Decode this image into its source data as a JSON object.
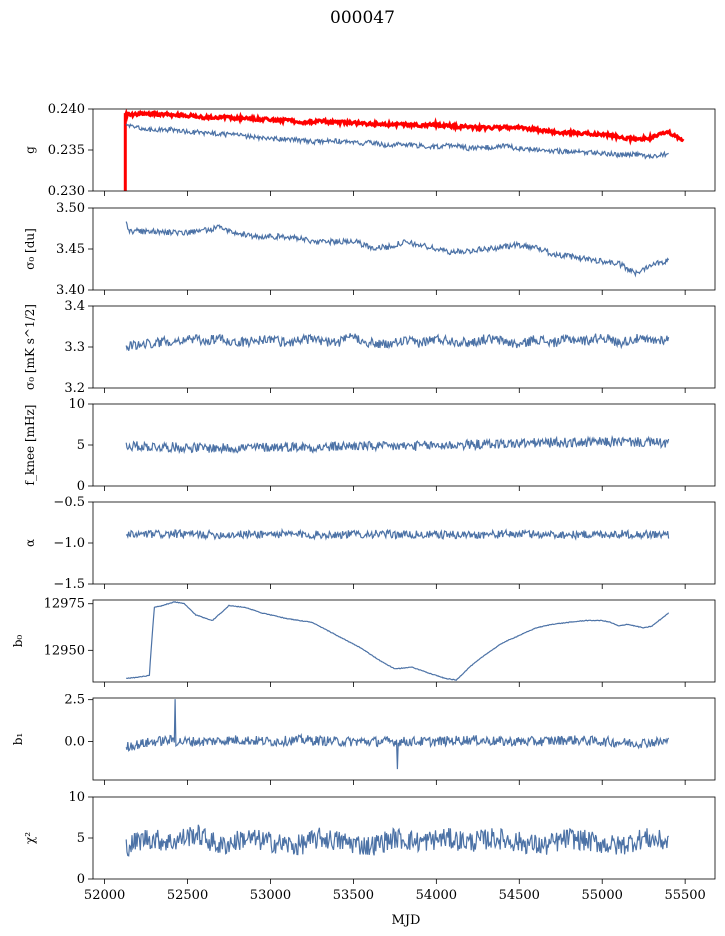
{
  "figure": {
    "title": "000047"
  },
  "chart_data": [
    {
      "type": "line",
      "ylabel": "g",
      "ylim": [
        0.23,
        0.24
      ],
      "yticks": [
        "0.230",
        "0.235",
        "0.240"
      ],
      "yticks_values": [
        0.23,
        0.235,
        0.24
      ],
      "series": [
        {
          "color": "#ff0000",
          "line_width": 3,
          "x": [
            52120,
            52150,
            52200,
            52300,
            52400,
            52500,
            52600,
            52700,
            52800,
            52900,
            53000,
            53100,
            53200,
            53300,
            53400,
            53500,
            53600,
            53700,
            53800,
            53900,
            54000,
            54100,
            54200,
            54300,
            54400,
            54500,
            54600,
            54700,
            54800,
            54900,
            55000,
            55050,
            55100,
            55150,
            55200,
            55250,
            55300,
            55350,
            55400,
            55450,
            55490
          ],
          "y": [
            0.2393,
            0.2393,
            0.2394,
            0.2394,
            0.2393,
            0.2392,
            0.239,
            0.239,
            0.2389,
            0.2388,
            0.2387,
            0.2386,
            0.2384,
            0.2385,
            0.2384,
            0.2383,
            0.2382,
            0.2381,
            0.2381,
            0.238,
            0.2381,
            0.2379,
            0.2378,
            0.2377,
            0.2378,
            0.2377,
            0.2375,
            0.2372,
            0.2371,
            0.237,
            0.2369,
            0.2368,
            0.2366,
            0.2364,
            0.2363,
            0.2364,
            0.2365,
            0.2369,
            0.2372,
            0.2366,
            0.236
          ]
        },
        {
          "color": "#4c72a6",
          "line_width": 1.2,
          "x": [
            52130,
            52200,
            52300,
            52400,
            52500,
            52600,
            52700,
            52800,
            52900,
            53000,
            53100,
            53200,
            53300,
            53400,
            53500,
            53600,
            53700,
            53800,
            53900,
            54000,
            54100,
            54200,
            54300,
            54400,
            54500,
            54600,
            54700,
            54800,
            54900,
            55000,
            55100,
            55200,
            55300,
            55400
          ],
          "y": [
            0.2382,
            0.2377,
            0.2374,
            0.2375,
            0.2372,
            0.2371,
            0.2369,
            0.2368,
            0.2366,
            0.2363,
            0.2364,
            0.2361,
            0.236,
            0.2361,
            0.2358,
            0.2359,
            0.2356,
            0.2357,
            0.2355,
            0.2354,
            0.2356,
            0.2352,
            0.2353,
            0.2355,
            0.2352,
            0.2351,
            0.2349,
            0.2348,
            0.2347,
            0.2346,
            0.2344,
            0.2345,
            0.2341,
            0.2346
          ]
        }
      ]
    },
    {
      "type": "line",
      "ylabel": "σ₀ [du]",
      "ylim": [
        3.4,
        3.5
      ],
      "yticks": [
        "3.40",
        "3.45",
        "3.50"
      ],
      "yticks_values": [
        3.4,
        3.45,
        3.5
      ],
      "series": [
        {
          "color": "#4c72a6",
          "line_width": 1.2,
          "x": [
            52130,
            52150,
            52300,
            52500,
            52700,
            52800,
            52900,
            53100,
            53300,
            53500,
            53600,
            53700,
            53800,
            53900,
            54000,
            54100,
            54300,
            54500,
            54600,
            54700,
            54900,
            55100,
            55200,
            55300,
            55400
          ],
          "y": [
            3.482,
            3.472,
            3.471,
            3.47,
            3.476,
            3.47,
            3.465,
            3.465,
            3.458,
            3.46,
            3.452,
            3.452,
            3.458,
            3.455,
            3.45,
            3.446,
            3.45,
            3.455,
            3.452,
            3.444,
            3.438,
            3.432,
            3.42,
            3.432,
            3.436
          ]
        }
      ]
    },
    {
      "type": "line",
      "ylabel": "σ₀ [mK s^1/2]",
      "ylim": [
        3.2,
        3.4
      ],
      "yticks": [
        "3.2",
        "3.3",
        "3.4"
      ],
      "yticks_values": [
        3.2,
        3.3,
        3.4
      ],
      "series": [
        {
          "color": "#4c72a6",
          "line_width": 1.2,
          "x": [
            52130,
            52200,
            52300,
            52400,
            52500,
            52600,
            52700,
            52800,
            52900,
            53000,
            53100,
            53200,
            53300,
            53400,
            53500,
            53600,
            53700,
            53800,
            53900,
            54000,
            54100,
            54200,
            54300,
            54400,
            54500,
            54600,
            54700,
            54800,
            54900,
            55000,
            55100,
            55200,
            55300,
            55400
          ],
          "y": [
            3.3,
            3.305,
            3.31,
            3.315,
            3.32,
            3.315,
            3.32,
            3.31,
            3.315,
            3.32,
            3.31,
            3.32,
            3.315,
            3.31,
            3.325,
            3.31,
            3.305,
            3.315,
            3.31,
            3.32,
            3.315,
            3.31,
            3.32,
            3.315,
            3.305,
            3.32,
            3.31,
            3.32,
            3.315,
            3.325,
            3.31,
            3.32,
            3.315,
            3.32
          ]
        }
      ]
    },
    {
      "type": "line",
      "ylabel": "f_knee [mHz]",
      "ylim": [
        0,
        10
      ],
      "yticks": [
        "0",
        "5",
        "10"
      ],
      "yticks_values": [
        0,
        5,
        10
      ],
      "series": [
        {
          "color": "#4c72a6",
          "line_width": 1.2,
          "x": [
            52130,
            52300,
            52500,
            52700,
            52900,
            53100,
            53300,
            53500,
            53700,
            53900,
            54100,
            54300,
            54500,
            54700,
            54900,
            55100,
            55300,
            55400
          ],
          "y": [
            4.9,
            4.8,
            4.7,
            4.6,
            4.7,
            4.8,
            4.7,
            4.9,
            4.8,
            4.9,
            5.0,
            5.1,
            5.2,
            5.3,
            5.3,
            5.4,
            5.3,
            5.2
          ]
        }
      ]
    },
    {
      "type": "line",
      "ylabel": "α",
      "ylim": [
        -1.5,
        -0.5
      ],
      "yticks": [
        "−1.5",
        "−1.0",
        "−0.5"
      ],
      "yticks_values": [
        -1.5,
        -1.0,
        -0.5
      ],
      "series": [
        {
          "color": "#4c72a6",
          "line_width": 1.2,
          "x": [
            52130,
            52400,
            52700,
            53000,
            53300,
            53600,
            53900,
            54200,
            54500,
            54800,
            55100,
            55400
          ],
          "y": [
            -0.9,
            -0.89,
            -0.9,
            -0.89,
            -0.9,
            -0.89,
            -0.9,
            -0.9,
            -0.89,
            -0.9,
            -0.89,
            -0.9
          ]
        }
      ]
    },
    {
      "type": "line",
      "ylabel": "b₀",
      "ylim": [
        12933,
        12977
      ],
      "yticks": [
        "12950",
        "12975"
      ],
      "yticks_values": [
        12950,
        12975
      ],
      "series": [
        {
          "color": "#4c72a6",
          "line_width": 1.2,
          "x": [
            52130,
            52200,
            52270,
            52280,
            52300,
            52350,
            52420,
            52480,
            52550,
            52650,
            52750,
            52850,
            52950,
            53100,
            53250,
            53400,
            53550,
            53650,
            53750,
            53850,
            53950,
            54050,
            54120,
            54200,
            54300,
            54400,
            54500,
            54600,
            54700,
            54800,
            54900,
            55000,
            55050,
            55100,
            55150,
            55200,
            55250,
            55300,
            55400
          ],
          "y": [
            12935,
            12935.5,
            12936.5,
            12950,
            12973,
            12974,
            12976,
            12975,
            12969,
            12966,
            12974,
            12973,
            12970,
            12967,
            12965,
            12958,
            12951,
            12945,
            12940,
            12941,
            12938,
            12935,
            12934,
            12941,
            12948,
            12954,
            12958,
            12962,
            12964,
            12965,
            12966,
            12966,
            12965,
            12963,
            12964,
            12963,
            12962,
            12963,
            12970
          ]
        }
      ]
    },
    {
      "type": "line",
      "ylabel": "b₁",
      "ylim": [
        -2.3,
        2.6
      ],
      "yticks": [
        "0.0",
        "2.5"
      ],
      "yticks_values": [
        0.0,
        2.5
      ],
      "series": [
        {
          "color": "#4c72a6",
          "line_width": 1.2,
          "x": [
            52130,
            52300,
            52420,
            52425,
            52430,
            52600,
            52800,
            53000,
            53200,
            53400,
            53600,
            53760,
            53765,
            53770,
            54000,
            54200,
            54400,
            54600,
            54800,
            55000,
            55200,
            55400
          ],
          "y": [
            -0.3,
            0.0,
            0.1,
            2.5,
            0.0,
            0.0,
            0.1,
            0.0,
            0.1,
            0.0,
            0.0,
            0.0,
            -1.5,
            0.0,
            0.0,
            0.1,
            0.0,
            0.0,
            0.1,
            0.0,
            -0.1,
            0.0
          ]
        }
      ]
    },
    {
      "type": "line",
      "ylabel": "χ²",
      "xlabel": "MJD",
      "ylim": [
        0,
        10
      ],
      "yticks": [
        "0",
        "5",
        "10"
      ],
      "yticks_values": [
        0,
        5,
        10
      ],
      "series": [
        {
          "color": "#4c72a6",
          "line_width": 1.2,
          "x": [
            52130,
            52250,
            52400,
            52550,
            52700,
            52850,
            53000,
            53150,
            53300,
            53450,
            53600,
            53750,
            53900,
            54050,
            54200,
            54350,
            54500,
            54650,
            54800,
            54950,
            55100,
            55250,
            55400
          ],
          "y": [
            4.0,
            5.0,
            4.5,
            5.5,
            4.0,
            5.0,
            4.5,
            4.0,
            5.0,
            4.5,
            4.0,
            5.0,
            4.5,
            5.0,
            4.5,
            5.0,
            4.5,
            4.0,
            5.0,
            4.5,
            4.0,
            5.0,
            4.5
          ]
        }
      ]
    }
  ],
  "xaxis": {
    "xlim": [
      51930,
      55680
    ],
    "ticks": [
      "52000",
      "52500",
      "53000",
      "53500",
      "54000",
      "54500",
      "55000",
      "55500"
    ],
    "tick_values": [
      52000,
      52500,
      53000,
      53500,
      54000,
      54500,
      55000,
      55500
    ],
    "label": "MJD"
  }
}
